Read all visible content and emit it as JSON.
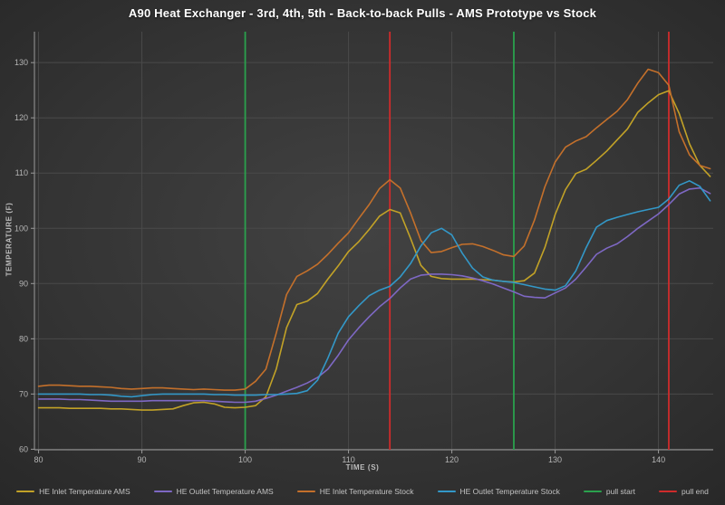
{
  "title": "A90 Heat Exchanger - 3rd, 4th, 5th - Back-to-back Pulls - AMS Prototype vs Stock",
  "chart_data": {
    "type": "line",
    "title": "A90 Heat Exchanger - 3rd, 4th, 5th - Back-to-back Pulls - AMS Prototype vs Stock",
    "xlabel": "TIME (S)",
    "ylabel": "TEMPERATURE (F)",
    "xlim": [
      79.6,
      145.3
    ],
    "ylim": [
      59.9,
      135.6
    ],
    "x_ticks": [
      80,
      90,
      100,
      110,
      120,
      130,
      140
    ],
    "y_ticks": [
      60,
      70,
      80,
      90,
      100,
      110,
      120,
      130
    ],
    "grid": true,
    "legend_position": "bottom",
    "x_start": 80,
    "x_step": 1,
    "series": [
      {
        "name": "HE Inlet Temperature AMS",
        "color": "#c2a227",
        "values": [
          67.5,
          67.5,
          67.5,
          67.4,
          67.4,
          67.4,
          67.4,
          67.3,
          67.3,
          67.2,
          67.1,
          67.1,
          67.2,
          67.3,
          67.9,
          68.4,
          68.5,
          68.2,
          67.6,
          67.5,
          67.6,
          67.9,
          69.5,
          74.5,
          82.0,
          86.2,
          86.8,
          88.2,
          90.8,
          93.2,
          95.8,
          97.6,
          99.8,
          102.2,
          103.4,
          102.8,
          98.2,
          93.3,
          91.3,
          90.9,
          90.8,
          90.8,
          90.8,
          90.7,
          90.6,
          90.4,
          90.3,
          90.5,
          91.9,
          96.5,
          102.5,
          107.0,
          109.9,
          110.7,
          112.3,
          114.0,
          116.0,
          118.0,
          121.0,
          122.7,
          124.2,
          124.9,
          120.8,
          115.3,
          111.4,
          109.4
        ]
      },
      {
        "name": "HE Outlet Temperature AMS",
        "color": "#7e68c4",
        "values": [
          69.1,
          69.1,
          69.1,
          69.0,
          69.0,
          68.9,
          68.8,
          68.7,
          68.7,
          68.7,
          68.7,
          68.8,
          68.8,
          68.8,
          68.8,
          68.8,
          68.8,
          68.7,
          68.6,
          68.5,
          68.5,
          68.7,
          69.2,
          69.8,
          70.5,
          71.2,
          72.0,
          73.0,
          74.5,
          77.0,
          79.8,
          82.0,
          84.0,
          85.8,
          87.3,
          89.2,
          90.8,
          91.5,
          91.7,
          91.7,
          91.6,
          91.4,
          91.0,
          90.5,
          89.9,
          89.2,
          88.5,
          87.7,
          87.5,
          87.4,
          88.3,
          89.2,
          90.8,
          93.0,
          95.3,
          96.4,
          97.2,
          98.5,
          100.0,
          101.3,
          102.6,
          104.3,
          106.2,
          107.1,
          107.3,
          106.3
        ]
      },
      {
        "name": "HE Inlet Temperature Stock",
        "color": "#c4702b",
        "values": [
          71.4,
          71.6,
          71.6,
          71.5,
          71.4,
          71.4,
          71.3,
          71.2,
          71.0,
          70.9,
          71.0,
          71.1,
          71.1,
          71.0,
          70.9,
          70.8,
          70.9,
          70.8,
          70.7,
          70.7,
          70.9,
          72.3,
          74.5,
          81.0,
          88.0,
          91.3,
          92.3,
          93.5,
          95.3,
          97.3,
          99.2,
          101.8,
          104.3,
          107.2,
          108.8,
          107.3,
          102.8,
          97.8,
          95.6,
          95.8,
          96.5,
          97.1,
          97.2,
          96.7,
          96.0,
          95.2,
          94.9,
          96.8,
          101.5,
          107.5,
          112.0,
          114.7,
          115.8,
          116.6,
          118.2,
          119.7,
          121.2,
          123.3,
          126.3,
          128.8,
          128.2,
          125.9,
          117.5,
          113.3,
          111.4,
          110.8
        ]
      },
      {
        "name": "HE Outlet Temperature Stock",
        "color": "#3398c8",
        "values": [
          70.0,
          70.0,
          70.0,
          70.0,
          70.0,
          69.9,
          69.9,
          69.8,
          69.6,
          69.5,
          69.7,
          69.9,
          70.0,
          70.0,
          70.0,
          70.0,
          70.0,
          69.9,
          69.9,
          69.8,
          69.8,
          69.8,
          69.9,
          69.9,
          70.0,
          70.1,
          70.6,
          72.5,
          76.5,
          81.0,
          84.0,
          86.0,
          87.8,
          88.8,
          89.5,
          91.2,
          93.6,
          96.8,
          99.2,
          100.0,
          98.8,
          95.5,
          92.8,
          91.2,
          90.6,
          90.4,
          90.2,
          89.8,
          89.4,
          89.0,
          88.8,
          89.6,
          92.3,
          96.5,
          100.2,
          101.4,
          102.0,
          102.5,
          103.0,
          103.4,
          103.8,
          105.3,
          107.8,
          108.6,
          107.6,
          105.0
        ]
      }
    ],
    "vlines": [
      {
        "name": "pull start",
        "color": "#2aa14d",
        "x": [
          100,
          126
        ]
      },
      {
        "name": "pull end",
        "color": "#cf2b2b",
        "x": [
          114,
          141
        ]
      }
    ]
  },
  "colors": {
    "background": "#343434",
    "grid": "#4a4a4a",
    "axis": "#9a9a9a",
    "tick_text": "#b5b5b5",
    "title_text": "#ffffff",
    "legend_text": "#c2c2c2"
  }
}
